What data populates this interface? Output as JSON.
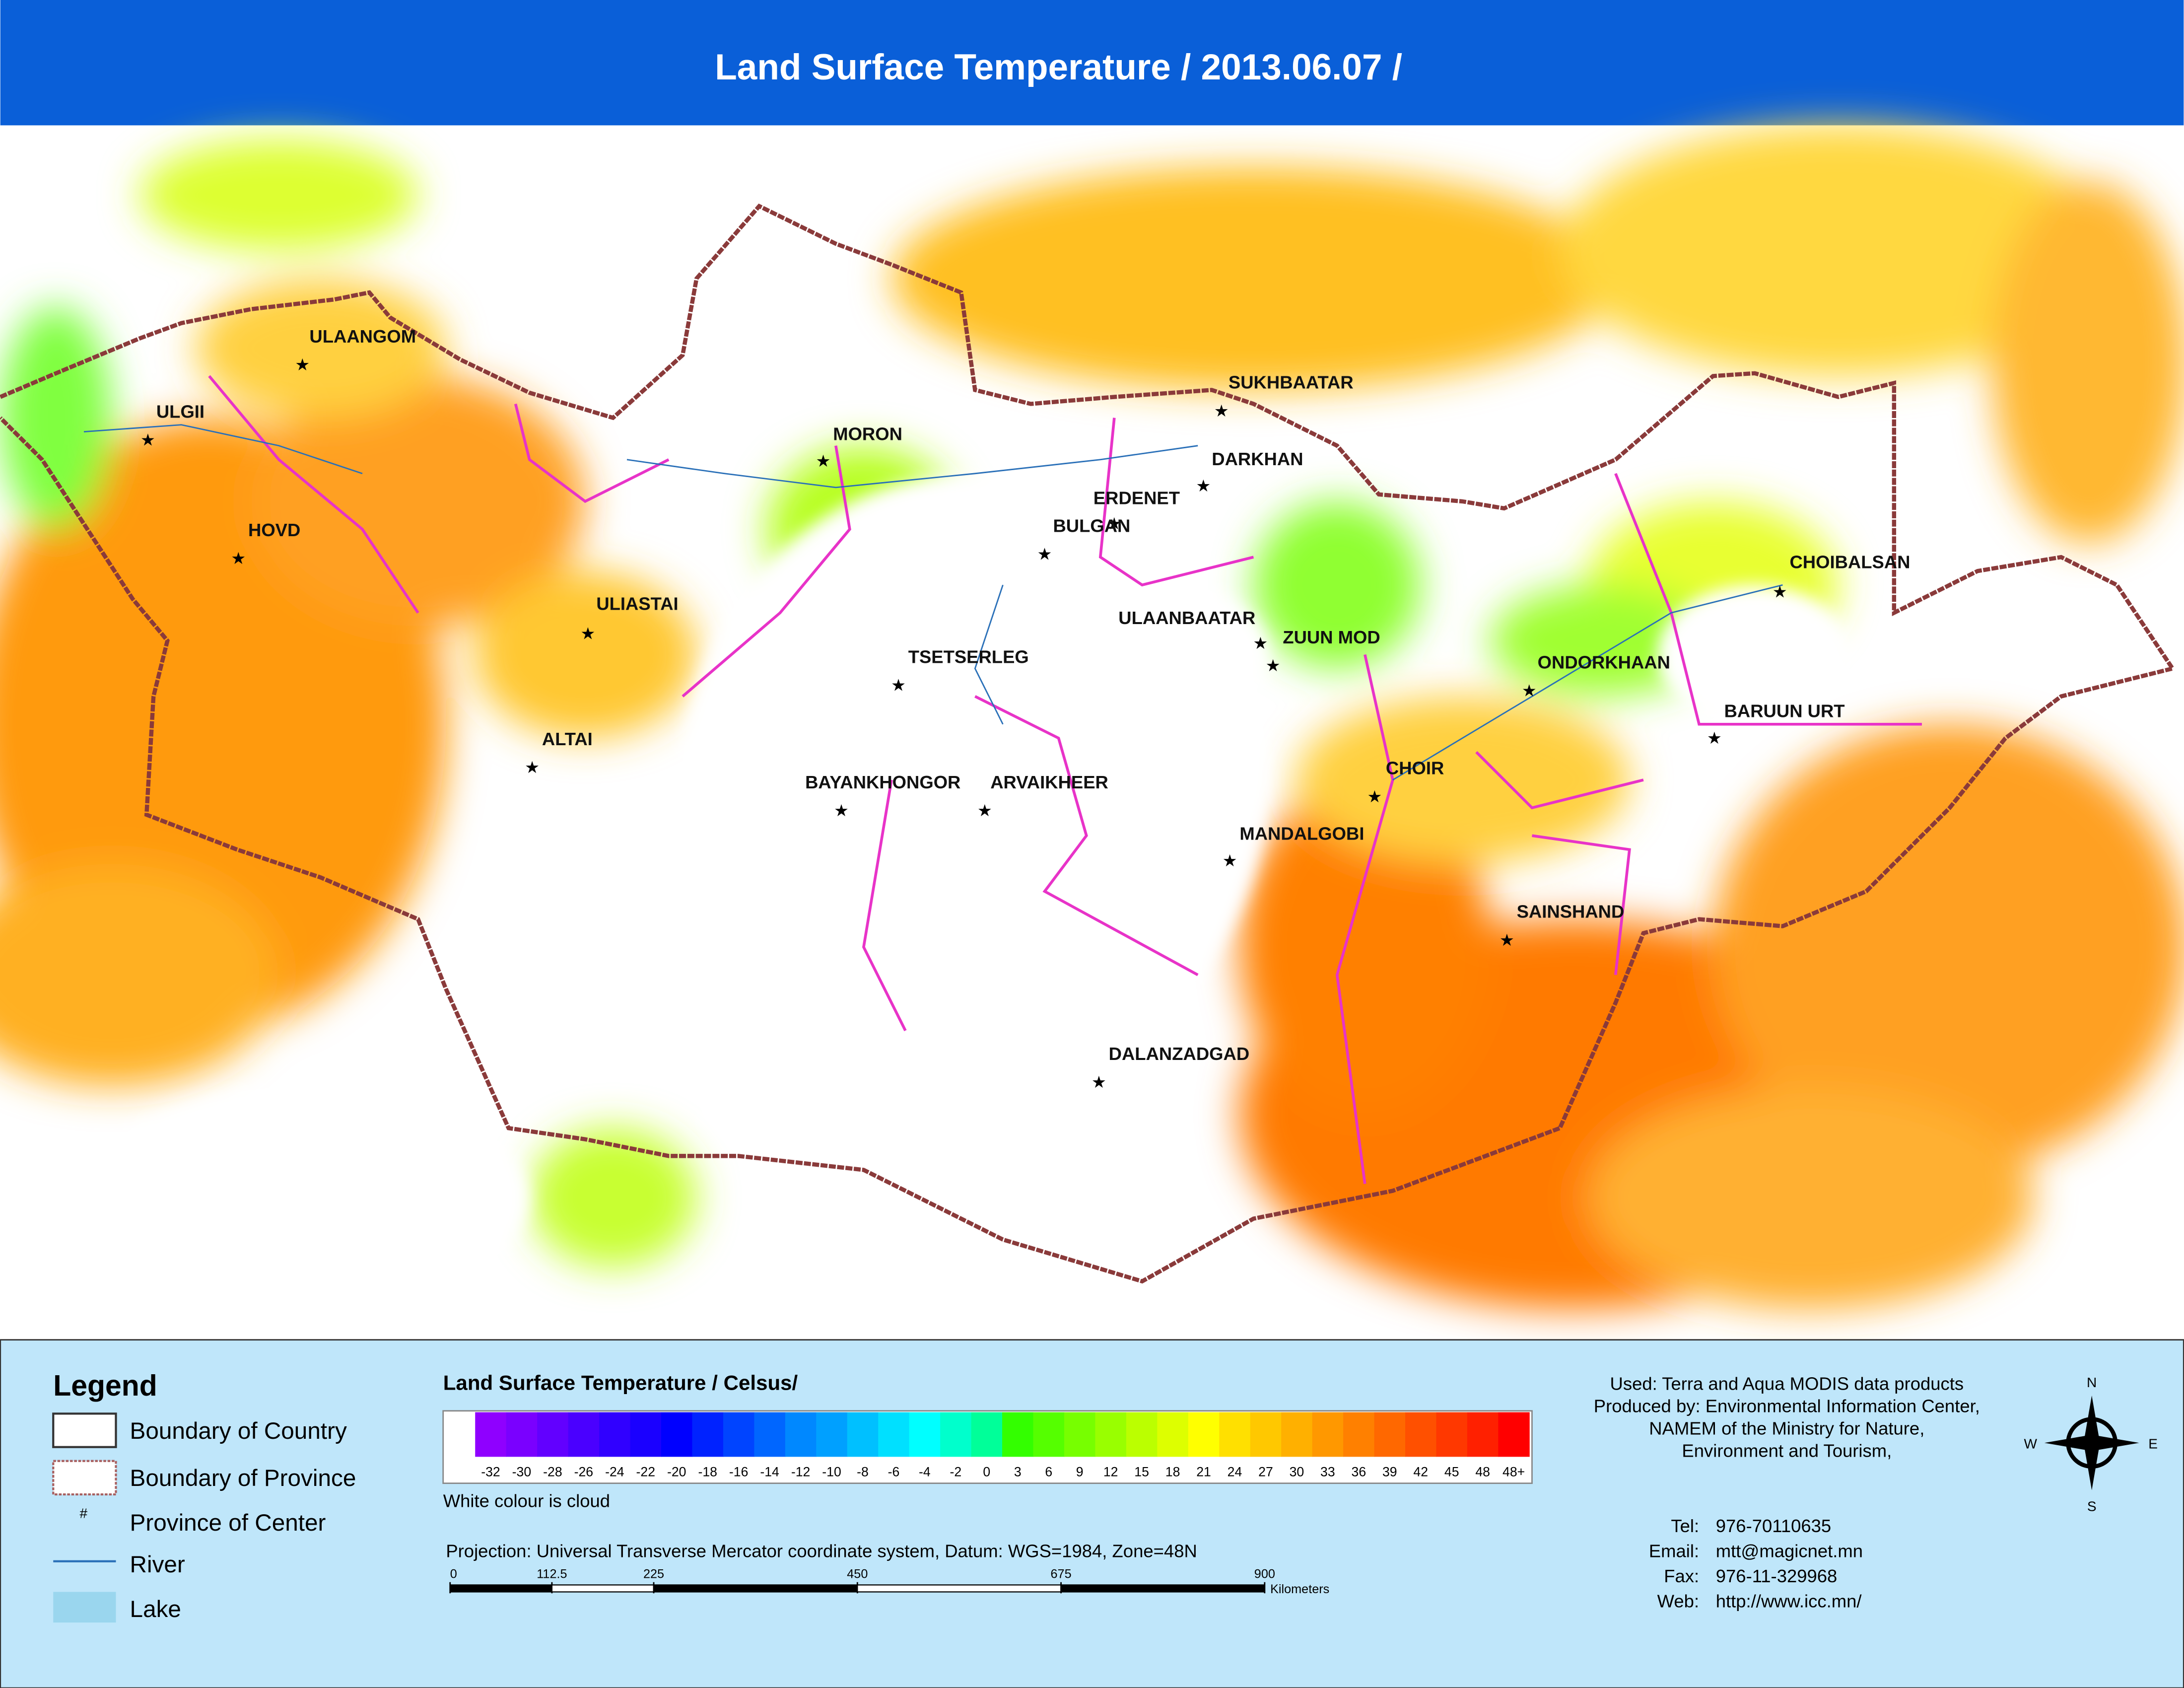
{
  "title": "Land Surface Temperature / 2013.06.07 /",
  "cities": [
    {
      "name": "ULAANGOM"
    },
    {
      "name": "ULGII"
    },
    {
      "name": "HOVD"
    },
    {
      "name": "MORON"
    },
    {
      "name": "SUKHBAATAR"
    },
    {
      "name": "DARKHAN"
    },
    {
      "name": "ERDENET"
    },
    {
      "name": "BULGAN"
    },
    {
      "name": "ULIASTAI"
    },
    {
      "name": "ULAANBAATAR"
    },
    {
      "name": "ZUUN MOD"
    },
    {
      "name": "TSETSERLEG"
    },
    {
      "name": "CHOIBALSAN"
    },
    {
      "name": "ONDORKHAAN"
    },
    {
      "name": "BARUUN URT"
    },
    {
      "name": "ALTAI"
    },
    {
      "name": "CHOIR"
    },
    {
      "name": "BAYANKHONGOR"
    },
    {
      "name": "ARVAIKHEER"
    },
    {
      "name": "MANDALGOBI"
    },
    {
      "name": "SAINSHAND"
    },
    {
      "name": "DALANZADGAD"
    }
  ],
  "legend": {
    "title": "Legend",
    "items": [
      "Boundary of Country",
      "Boundary of Province",
      "Province of Center",
      "River",
      "Lake"
    ],
    "center_symbol": "#"
  },
  "color_scale": {
    "title": "Land Surface Temperature / Celsus/",
    "note": "White colour is cloud",
    "ticks": [
      -32,
      -30,
      -28,
      -26,
      -24,
      -22,
      -20,
      -18,
      -16,
      -14,
      -12,
      -10,
      -8,
      -6,
      -4,
      -2,
      0,
      3,
      6,
      9,
      12,
      15,
      18,
      21,
      24,
      27,
      30,
      33,
      36,
      39,
      42,
      45,
      48,
      {
        "value": 48,
        "label": "48+"
      }
    ],
    "colors": [
      "#8f00ff",
      "#7a00ff",
      "#6200ff",
      "#4a00ff",
      "#3000ff",
      "#1a00ff",
      "#0000ff",
      "#0022ff",
      "#0044ff",
      "#0066ff",
      "#0088ff",
      "#00a0ff",
      "#00c0ff",
      "#00e0ff",
      "#00ffff",
      "#00ffcc",
      "#00ff99",
      "#33ff00",
      "#55ff00",
      "#77ff00",
      "#99ff00",
      "#bbff00",
      "#ddff00",
      "#ffff00",
      "#ffe000",
      "#ffc800",
      "#ffb000",
      "#ff9800",
      "#ff8000",
      "#ff6800",
      "#ff5000",
      "#ff3800",
      "#ff2000",
      "#ff0000"
    ]
  },
  "projection": "Projection: Universal Transverse Mercator coordinate system, Datum: WGS=1984, Zone=48N",
  "scale_bar": {
    "ticks": [
      0,
      112.5,
      225,
      450,
      675,
      900
    ],
    "unit": "Kilometers"
  },
  "credits": [
    "Used: Terra and Aqua MODIS data products",
    "Produced by: Environmental Information Center,",
    "NAMEM of the Ministry for Nature,",
    "Environment and Tourism,"
  ],
  "contacts": [
    {
      "label": "Tel:",
      "value": "976-70110635"
    },
    {
      "label": "Email:",
      "value": "mtt@magicnet.mn"
    },
    {
      "label": "Fax:",
      "value": "976-11-329968"
    },
    {
      "label": "Web:",
      "value": "http://www.icc.mn/"
    }
  ],
  "compass": {
    "n": "N",
    "e": "E",
    "s": "S",
    "w": "W"
  }
}
